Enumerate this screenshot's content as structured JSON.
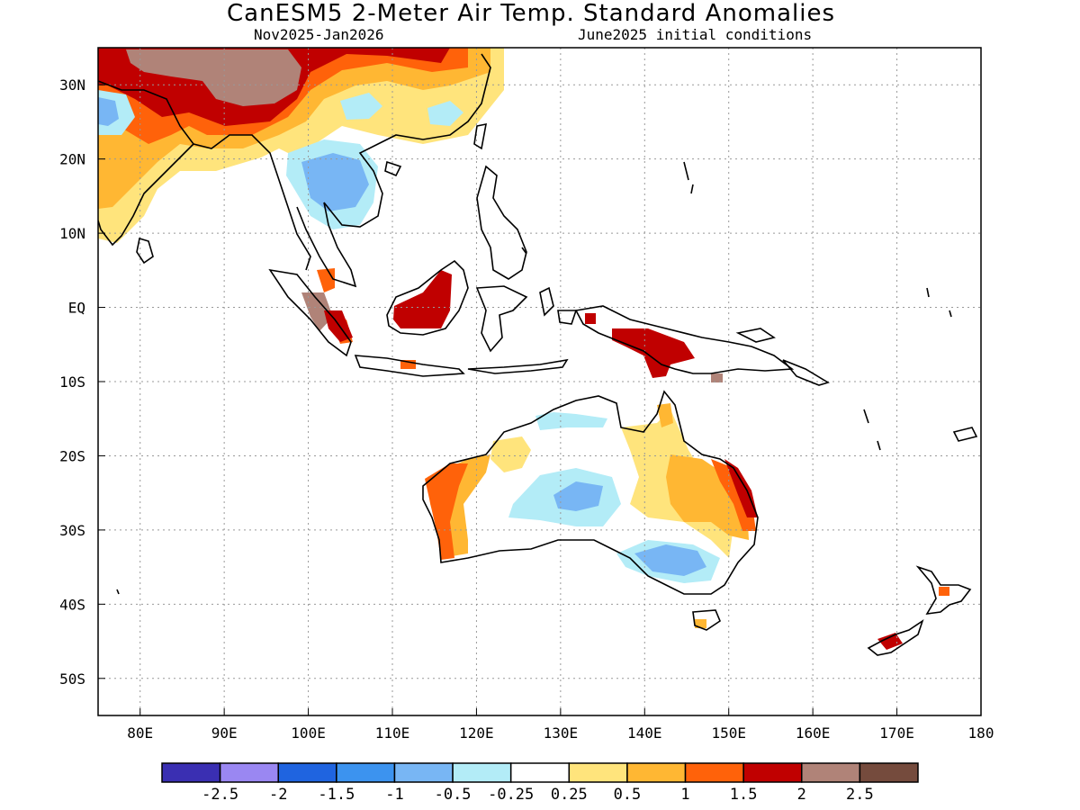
{
  "header": {
    "title": "CanESM5 2-Meter Air Temp. Standard Anomalies",
    "period": "Nov2025-Jan2026",
    "init": "June2025 initial conditions"
  },
  "map": {
    "lon_range": [
      75,
      180
    ],
    "lat_range": [
      -55,
      35
    ],
    "grid": "dotted",
    "lat_ticks": [
      {
        "value": 30,
        "label": "30N"
      },
      {
        "value": 20,
        "label": "20N"
      },
      {
        "value": 10,
        "label": "10N"
      },
      {
        "value": 0,
        "label": "EQ"
      },
      {
        "value": -10,
        "label": "10S"
      },
      {
        "value": -20,
        "label": "20S"
      },
      {
        "value": -30,
        "label": "30S"
      },
      {
        "value": -40,
        "label": "40S"
      },
      {
        "value": -50,
        "label": "50S"
      }
    ],
    "lon_ticks": [
      {
        "value": 80,
        "label": "80E"
      },
      {
        "value": 90,
        "label": "90E"
      },
      {
        "value": 100,
        "label": "100E"
      },
      {
        "value": 110,
        "label": "110E"
      },
      {
        "value": 120,
        "label": "120E"
      },
      {
        "value": 130,
        "label": "130E"
      },
      {
        "value": 140,
        "label": "140E"
      },
      {
        "value": 150,
        "label": "150E"
      },
      {
        "value": 160,
        "label": "160E"
      },
      {
        "value": 170,
        "label": "170E"
      },
      {
        "value": 180,
        "label": "180"
      }
    ]
  },
  "colorbar": {
    "colors": [
      "#3a2fb2",
      "#9a87f2",
      "#1f64e0",
      "#3c93ef",
      "#78b6f4",
      "#b3ecf7",
      "#ffffff",
      "#ffe47c",
      "#ffb733",
      "#ff620a",
      "#c00000",
      "#b08378",
      "#754b3d"
    ],
    "labels": [
      "-2.5",
      "-2",
      "-1.5",
      "-1",
      "-0.5",
      "-0.25",
      "0.25",
      "0.5",
      "1",
      "1.5",
      "2",
      "2.5"
    ]
  }
}
